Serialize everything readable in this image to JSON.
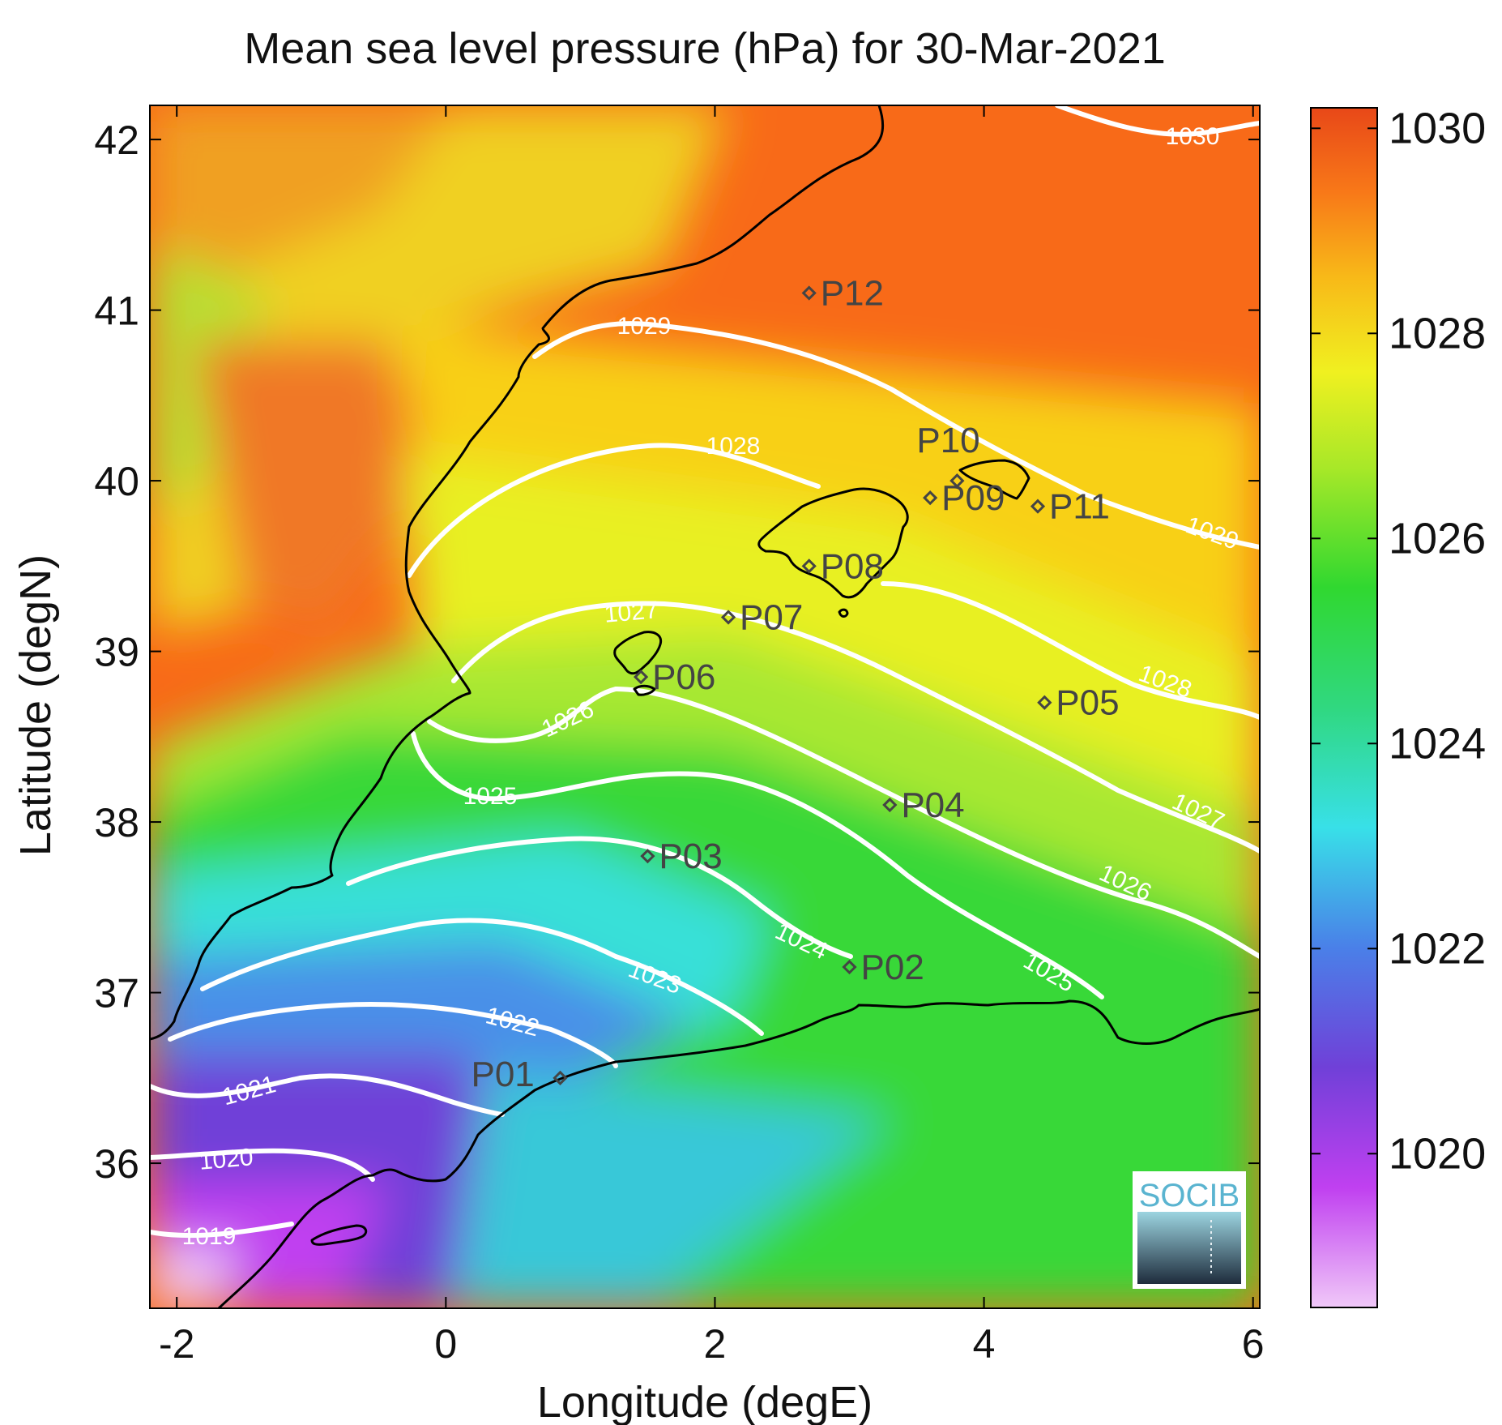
{
  "title": "Mean sea level pressure (hPa) for 30-Mar-2021",
  "xlabel": "Longitude (degE)",
  "ylabel": "Latitude (degN)",
  "logo_text": "SOCIB",
  "colorbar": {
    "range": [
      1018.5,
      1030.2
    ],
    "ticks": [
      "1020",
      "1022",
      "1024",
      "1026",
      "1028",
      "1030"
    ],
    "colormap": [
      "#f0c8f8",
      "#c040f0",
      "#7040d8",
      "#4a80e8",
      "#38e0e8",
      "#30d880",
      "#30d830",
      "#a8e828",
      "#f0f020",
      "#f8b818",
      "#f87818",
      "#e84818"
    ]
  },
  "chart_data": {
    "type": "map",
    "xlim": [
      -2.2,
      6.05
    ],
    "ylim": [
      35.15,
      42.2
    ],
    "xticks": [
      "-2",
      "0",
      "2",
      "4",
      "6"
    ],
    "yticks": [
      "36",
      "37",
      "38",
      "39",
      "40",
      "41",
      "42"
    ],
    "stations": [
      {
        "name": "P01",
        "lon": 0.85,
        "lat": 36.5
      },
      {
        "name": "P02",
        "lon": 3.0,
        "lat": 37.15
      },
      {
        "name": "P03",
        "lon": 1.5,
        "lat": 37.8
      },
      {
        "name": "P04",
        "lon": 3.3,
        "lat": 38.1
      },
      {
        "name": "P05",
        "lon": 4.45,
        "lat": 38.7
      },
      {
        "name": "P06",
        "lon": 1.45,
        "lat": 38.85
      },
      {
        "name": "P07",
        "lon": 2.1,
        "lat": 39.2
      },
      {
        "name": "P08",
        "lon": 2.7,
        "lat": 39.5
      },
      {
        "name": "P09",
        "lon": 3.6,
        "lat": 39.9
      },
      {
        "name": "P10",
        "lon": 3.8,
        "lat": 40.0
      },
      {
        "name": "P11",
        "lon": 4.4,
        "lat": 39.85
      },
      {
        "name": "P12",
        "lon": 2.7,
        "lat": 41.1
      }
    ],
    "contour_labels": [
      "1019",
      "1020",
      "1021",
      "1022",
      "1023",
      "1024",
      "1025",
      "1025",
      "1026",
      "1026",
      "1027",
      "1027",
      "1028",
      "1028",
      "1029",
      "1029",
      "1030"
    ]
  }
}
